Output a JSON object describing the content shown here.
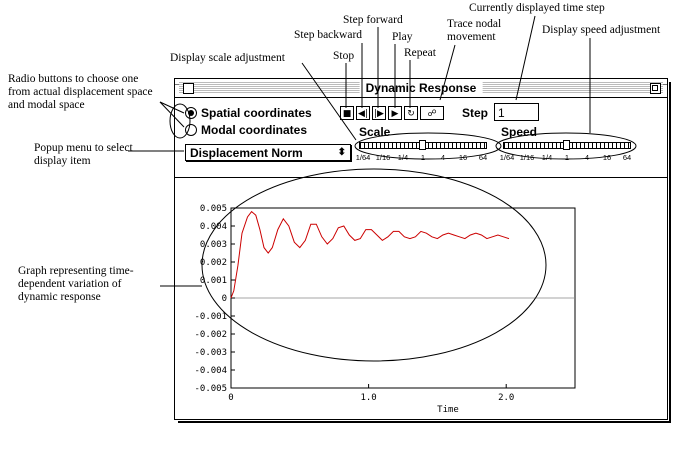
{
  "annotations": {
    "step_backward": "Step backward",
    "step_forward": "Step forward",
    "play": "Play",
    "stop": "Stop",
    "repeat": "Repeat",
    "trace": "Trace nodal movement",
    "current_step": "Currently displayed time step",
    "display_scale": "Display scale adjustment",
    "display_speed": "Display speed adjustment",
    "radio_buttons": "Radio buttons to choose one from actual displacement space and modal space",
    "popup_menu": "Popup menu to select display item",
    "graph": "Graph representing time-dependent variation of dynamic response"
  },
  "window": {
    "title": "Dynamic Response",
    "radio": [
      {
        "label": "Spatial coordinates",
        "selected": true
      },
      {
        "label": "Modal coordinates",
        "selected": false
      }
    ],
    "popup": {
      "value": "Displacement Norm",
      "arrow": "⬍"
    },
    "transport": {
      "stop": "■",
      "step_backward": "◀|",
      "step_forward": "|▶",
      "play": "▶",
      "repeat": "↻",
      "trace": "☍"
    },
    "step": {
      "label": "Step",
      "value": "1"
    },
    "scale": {
      "label": "Scale",
      "ticks": [
        "1/64",
        "1/16",
        "1/4",
        "1",
        "4",
        "16",
        "64"
      ],
      "value": "1"
    },
    "speed": {
      "label": "Speed",
      "ticks": [
        "1/64",
        "1/16",
        "1/4",
        "1",
        "4",
        "16",
        "64"
      ],
      "value": "1"
    }
  },
  "chart_data": {
    "type": "line",
    "xlabel": "Time",
    "ylabel": "",
    "xlim": [
      0,
      2.5
    ],
    "ylim": [
      -0.005,
      0.005
    ],
    "x_ticks": [
      "0",
      "1.0",
      "2.0"
    ],
    "y_ticks": [
      "0.005",
      "0.004",
      "0.003",
      "0.002",
      "0.001",
      "0",
      "-0.001",
      "-0.002",
      "-0.003",
      "-0.004",
      "-0.005"
    ],
    "series": [
      {
        "color": "#cc0000",
        "x": [
          0,
          0.02,
          0.05,
          0.08,
          0.12,
          0.15,
          0.18,
          0.21,
          0.24,
          0.27,
          0.3,
          0.34,
          0.38,
          0.42,
          0.46,
          0.5,
          0.54,
          0.58,
          0.62,
          0.66,
          0.7,
          0.74,
          0.78,
          0.82,
          0.86,
          0.9,
          0.94,
          0.98,
          1.02,
          1.06,
          1.1,
          1.14,
          1.18,
          1.22,
          1.26,
          1.3,
          1.34,
          1.38,
          1.42,
          1.46,
          1.5,
          1.54,
          1.58,
          1.62,
          1.66,
          1.7,
          1.74,
          1.78,
          1.82,
          1.86,
          1.9,
          1.94,
          1.98,
          2.02
        ],
        "y": [
          0,
          0.0004,
          0.0018,
          0.0036,
          0.0045,
          0.0048,
          0.0046,
          0.0038,
          0.0028,
          0.0025,
          0.0028,
          0.0038,
          0.0044,
          0.004,
          0.0031,
          0.0028,
          0.0032,
          0.0041,
          0.0041,
          0.0034,
          0.003,
          0.0033,
          0.0039,
          0.004,
          0.0035,
          0.0032,
          0.0033,
          0.0038,
          0.0038,
          0.0035,
          0.0032,
          0.0034,
          0.0037,
          0.0037,
          0.0034,
          0.0033,
          0.0034,
          0.0037,
          0.0036,
          0.0034,
          0.0033,
          0.0035,
          0.0036,
          0.0035,
          0.0034,
          0.0033,
          0.0035,
          0.0036,
          0.0035,
          0.0033,
          0.0034,
          0.0035,
          0.0034,
          0.0033
        ]
      }
    ]
  }
}
